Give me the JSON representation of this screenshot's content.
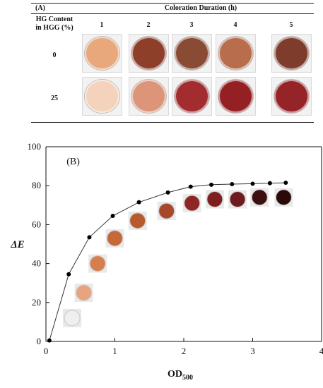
{
  "panel_a": {
    "label": "(A)",
    "header_row": "Coloration Duration (h)",
    "row_header_line1": "HG Content",
    "row_header_line2": "in HGG (%)",
    "durations": [
      "1",
      "2",
      "3",
      "4",
      "5"
    ],
    "rows": [
      {
        "hg_content": "0",
        "dish_colors": [
          "#e9a77c",
          "#8e3f2a",
          "#8a4b34",
          "#b86e4c",
          "#7e3d2c"
        ]
      },
      {
        "hg_content": "25",
        "dish_colors": [
          "#f4d2bb",
          "#dc9578",
          "#a32c2f",
          "#942024",
          "#952428"
        ]
      }
    ]
  },
  "chart_data": {
    "type": "line",
    "title": "(B)",
    "xlabel": "OD",
    "xlabel_subscript": "500",
    "ylabel": "ΔE",
    "xlim": [
      0,
      4
    ],
    "ylim": [
      0,
      100
    ],
    "xticks": [
      "0",
      "1",
      "2",
      "3",
      "4"
    ],
    "yticks": [
      "0",
      "20",
      "40",
      "60",
      "80",
      "100"
    ],
    "grid": false,
    "legend": "none",
    "series": [
      {
        "x": [
          0.05,
          0.33,
          0.63,
          0.97,
          1.35,
          1.77,
          2.1,
          2.4,
          2.7,
          3.0,
          3.25,
          3.48
        ],
        "y": [
          0.5,
          34.5,
          53.5,
          64.5,
          71.5,
          76.5,
          79.5,
          80.5,
          80.8,
          81.0,
          81.3,
          81.5
        ]
      }
    ],
    "inset_swatches": [
      {
        "x": 0.38,
        "y": 12,
        "color": "#f1eef0"
      },
      {
        "x": 0.55,
        "y": 25,
        "color": "#e8a47e"
      },
      {
        "x": 0.75,
        "y": 40,
        "color": "#d67f4d"
      },
      {
        "x": 1.0,
        "y": 53,
        "color": "#c5693a"
      },
      {
        "x": 1.33,
        "y": 62,
        "color": "#b75a2c"
      },
      {
        "x": 1.75,
        "y": 67,
        "color": "#a8482a"
      },
      {
        "x": 2.12,
        "y": 71,
        "color": "#8e2626"
      },
      {
        "x": 2.45,
        "y": 73,
        "color": "#7e1e1f"
      },
      {
        "x": 2.78,
        "y": 73,
        "color": "#6e1a1e"
      },
      {
        "x": 3.1,
        "y": 74,
        "color": "#3c0f10"
      },
      {
        "x": 3.45,
        "y": 74,
        "color": "#2a0909"
      }
    ]
  }
}
